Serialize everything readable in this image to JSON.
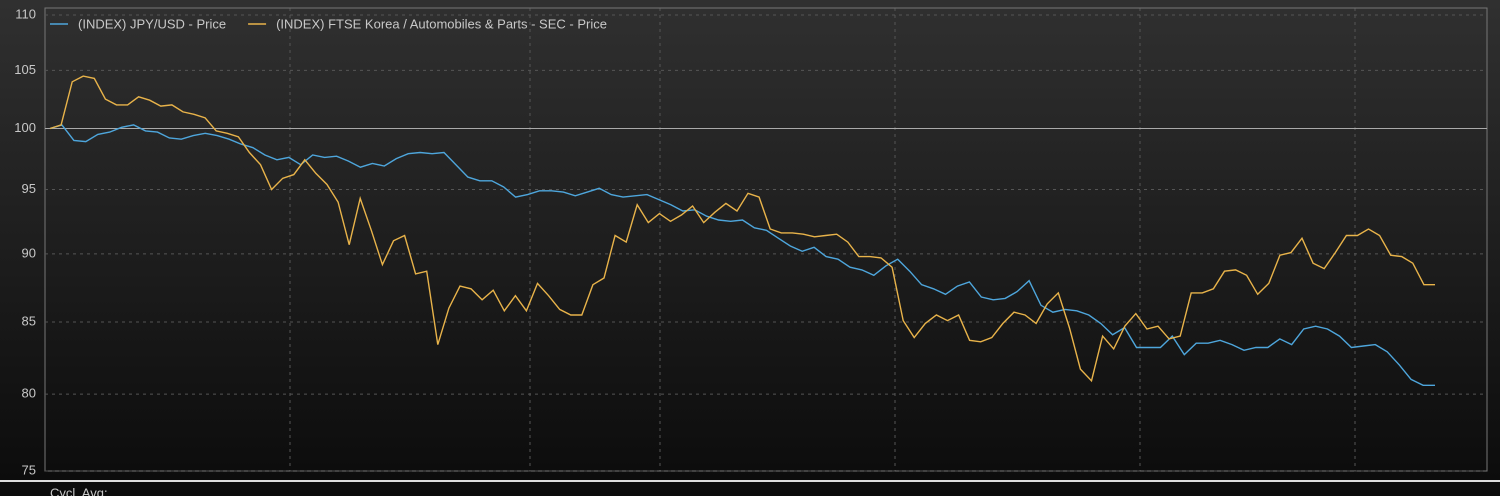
{
  "chart_data": {
    "type": "line",
    "series": [
      {
        "name": "(INDEX) JPY/USD - Price",
        "color": "#4ea6dc",
        "values": [
          100,
          100.3,
          99.0,
          98.9,
          99.5,
          99.7,
          100.1,
          100.3,
          99.8,
          99.7,
          99.2,
          99.1,
          99.4,
          99.6,
          99.4,
          99.1,
          98.7,
          98.4,
          97.8,
          97.4,
          97.6,
          97.0,
          97.8,
          97.6,
          97.7,
          97.3,
          96.8,
          97.1,
          96.9,
          97.5,
          97.9,
          98.0,
          97.9,
          98.0,
          97.0,
          96.0,
          95.7,
          95.7,
          95.2,
          94.4,
          94.6,
          94.9,
          94.9,
          94.8,
          94.5,
          94.8,
          95.1,
          94.6,
          94.4,
          94.5,
          94.6,
          94.2,
          93.8,
          93.3,
          93.4,
          92.9,
          92.6,
          92.5,
          92.6,
          92.0,
          91.8,
          91.2,
          90.6,
          90.2,
          90.5,
          89.8,
          89.6,
          89.0,
          88.8,
          88.4,
          89.1,
          89.6,
          88.7,
          87.7,
          87.4,
          87.0,
          87.6,
          87.9,
          86.8,
          86.6,
          86.7,
          87.2,
          88.0,
          86.2,
          85.7,
          85.9,
          85.8,
          85.5,
          84.9,
          84.1,
          84.6,
          83.2,
          83.2,
          83.2,
          84.0,
          82.7,
          83.5,
          83.5,
          83.7,
          83.4,
          83.0,
          83.2,
          83.2,
          83.8,
          83.4,
          84.5,
          84.7,
          84.5,
          84.0,
          83.2,
          83.3,
          83.4,
          82.9,
          82.0,
          81.0,
          80.6,
          80.6
        ]
      },
      {
        "name": "(INDEX) FTSE Korea / Automobiles & Parts - SEC - Price",
        "color": "#e8b34a",
        "values": [
          100,
          100.3,
          104.0,
          104.5,
          104.3,
          102.5,
          102.0,
          102.0,
          102.7,
          102.4,
          101.9,
          102.0,
          101.4,
          101.2,
          100.9,
          99.8,
          99.6,
          99.3,
          98.0,
          97.0,
          95.0,
          95.9,
          96.2,
          97.4,
          96.3,
          95.4,
          94.0,
          90.7,
          94.3,
          91.8,
          89.2,
          91.0,
          91.4,
          88.5,
          88.7,
          83.4,
          86.0,
          87.6,
          87.4,
          86.6,
          87.3,
          85.8,
          86.9,
          85.8,
          87.8,
          86.9,
          85.9,
          85.5,
          85.5,
          87.7,
          88.2,
          91.4,
          90.9,
          93.8,
          92.4,
          93.1,
          92.5,
          93.0,
          93.7,
          92.4,
          93.2,
          93.9,
          93.3,
          94.7,
          94.4,
          91.9,
          91.6,
          91.6,
          91.5,
          91.3,
          91.4,
          91.5,
          90.9,
          89.8,
          89.8,
          89.7,
          89.0,
          85.1,
          83.9,
          84.9,
          85.5,
          85.1,
          85.5,
          83.7,
          83.6,
          83.9,
          84.9,
          85.7,
          85.5,
          84.9,
          86.3,
          87.1,
          84.6,
          81.7,
          80.9,
          84.0,
          83.1,
          84.7,
          85.6,
          84.5,
          84.7,
          83.8,
          84.0,
          87.1,
          87.1,
          87.4,
          88.7,
          88.8,
          88.4,
          87.0,
          87.8,
          89.9,
          90.1,
          91.2,
          89.3,
          88.9,
          90.1,
          91.4,
          91.4,
          91.9,
          91.4,
          89.9,
          89.8,
          89.3,
          87.7,
          87.7
        ]
      }
    ],
    "ylim": [
      75,
      110
    ],
    "yticks": [
      75,
      80,
      85,
      90,
      95,
      100,
      105,
      110
    ],
    "log_scale": true,
    "grid": true,
    "baseline": 100,
    "legend": "top-left",
    "footer_text": "Cycl. Avg:"
  }
}
